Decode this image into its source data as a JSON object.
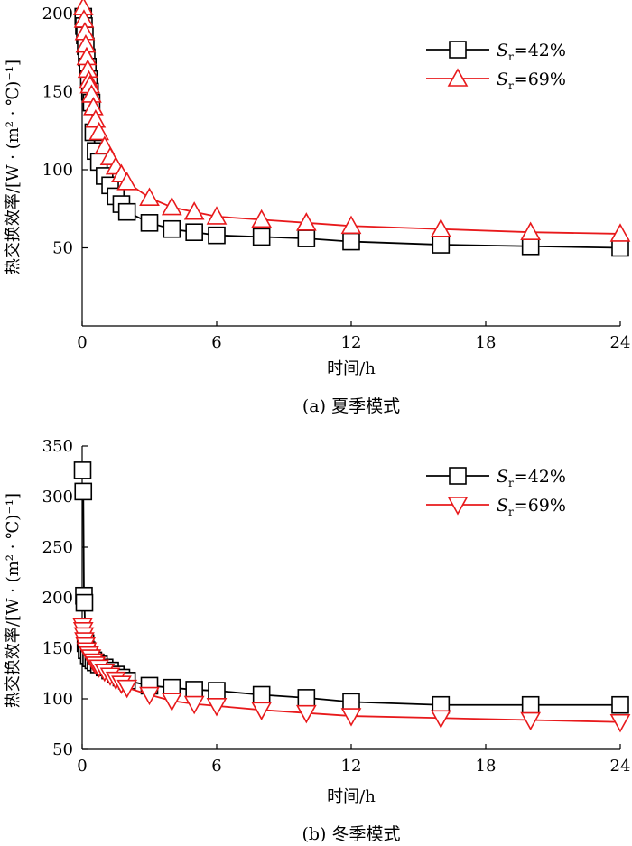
{
  "chart_data": [
    {
      "type": "line",
      "caption": "(a)  夏季模式",
      "xlabel": "时间/h",
      "ylabel": "热交换效率/[W · (m² · ℃)⁻¹]",
      "xlim": [
        0,
        24
      ],
      "ylim": [
        0,
        200
      ],
      "xticks": [
        0,
        6,
        12,
        18,
        24
      ],
      "yticks": [
        50,
        100,
        150,
        200
      ],
      "legend_position": "top-right",
      "series": [
        {
          "name": "42%",
          "legend_var": "S",
          "legend_sub": "r",
          "legend_eq": "=",
          "color": "#000000",
          "marker": "square",
          "x": [
            0.05,
            0.08,
            0.12,
            0.16,
            0.2,
            0.25,
            0.3,
            0.35,
            0.42,
            0.5,
            0.6,
            0.75,
            1,
            1.25,
            1.5,
            1.75,
            2,
            3,
            4,
            5,
            6,
            8,
            10,
            12,
            16,
            20,
            24
          ],
          "y": [
            198,
            192,
            186,
            179,
            172,
            166,
            158,
            150,
            143,
            124,
            112,
            105,
            96,
            90,
            83,
            78,
            73,
            66,
            62,
            60,
            58,
            57,
            56,
            54,
            52,
            51,
            50
          ]
        },
        {
          "name": "69%",
          "legend_var": "S",
          "legend_sub": "r",
          "legend_eq": "=",
          "color": "#e8191b",
          "marker": "triangle-up",
          "x": [
            0.05,
            0.08,
            0.12,
            0.16,
            0.2,
            0.25,
            0.3,
            0.35,
            0.42,
            0.5,
            0.6,
            0.75,
            1,
            1.25,
            1.5,
            1.75,
            2,
            3,
            4,
            5,
            6,
            8,
            10,
            12,
            16,
            20,
            24
          ],
          "y": [
            204,
            196,
            188,
            180,
            172,
            164,
            157,
            154,
            148,
            140,
            132,
            124,
            115,
            108,
            102,
            97,
            92,
            82,
            76,
            73,
            70,
            68,
            66,
            64,
            62,
            60,
            59
          ]
        }
      ]
    },
    {
      "type": "line",
      "caption": "(b)  冬季模式",
      "xlabel": "时间/h",
      "ylabel": "热交换效率/[W · (m² · ℃)⁻¹]",
      "xlim": [
        0,
        24
      ],
      "ylim": [
        50,
        350
      ],
      "xticks": [
        0,
        6,
        12,
        18,
        24
      ],
      "yticks": [
        50,
        100,
        150,
        200,
        250,
        300,
        350
      ],
      "legend_position": "top-right",
      "series": [
        {
          "name": "42%",
          "legend_var": "S",
          "legend_sub": "r",
          "legend_eq": "=",
          "color": "#000000",
          "marker": "square",
          "x": [
            0.02,
            0.05,
            0.08,
            0.1,
            0.15,
            0.2,
            0.3,
            0.4,
            0.5,
            0.6,
            0.75,
            1,
            1.25,
            1.5,
            1.75,
            2,
            3,
            4,
            5,
            6,
            8,
            10,
            12,
            16,
            20,
            24
          ],
          "y": [
            326,
            305,
            202,
            195,
            155,
            148,
            143,
            140,
            138,
            136,
            134,
            131,
            128,
            124,
            121,
            118,
            113,
            111,
            109,
            108,
            104,
            101,
            97,
            94,
            94,
            94
          ],
          "draw_from": 1
        },
        {
          "name": "69%",
          "legend_var": "S",
          "legend_sub": "r",
          "legend_eq": "=",
          "color": "#e8191b",
          "marker": "triangle-down",
          "x": [
            0.02,
            0.05,
            0.08,
            0.1,
            0.15,
            0.2,
            0.3,
            0.4,
            0.5,
            0.6,
            0.75,
            1,
            1.25,
            1.5,
            1.75,
            2,
            3,
            4,
            5,
            6,
            8,
            10,
            12,
            16,
            20,
            24
          ],
          "y": [
            172,
            168,
            163,
            158,
            153,
            148,
            144,
            141,
            137,
            134,
            131,
            127,
            123,
            119,
            115,
            111,
            104,
            98,
            95,
            93,
            89,
            86,
            83,
            81,
            79,
            77
          ]
        }
      ]
    }
  ]
}
